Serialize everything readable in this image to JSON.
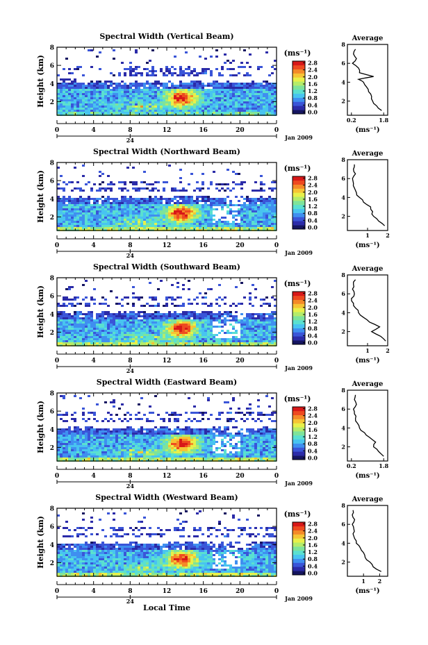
{
  "figure": {
    "xlabel": "Local Time",
    "date_label": "Jan 2009",
    "day_marker": "24",
    "ylabel": "Height (km)",
    "unit_label": "(ms⁻¹)",
    "avg_title": "Average"
  },
  "colormap": [
    "#151560",
    "#2b2ba8",
    "#3a55d8",
    "#3f8ff0",
    "#48c4f0",
    "#5ae0d0",
    "#7ee39a",
    "#b4ec6a",
    "#e8f04a",
    "#f6c434",
    "#f48a28",
    "#ee4a20",
    "#d81818"
  ],
  "chart_data": [
    {
      "type": "heatmap",
      "title": "Spectral Width (Vertical Beam)",
      "x_range": [
        0,
        24
      ],
      "y_range": [
        0.5,
        8
      ],
      "x_ticks": [
        "0",
        "4",
        "8",
        "12",
        "16",
        "20",
        "0"
      ],
      "y_ticks": [
        "2",
        "4",
        "6",
        "8"
      ],
      "colorbar": {
        "ticks": [
          "0.0",
          "0.4",
          "0.8",
          "1.2",
          "1.6",
          "2.0",
          "2.4",
          "2.8"
        ],
        "range": [
          0,
          3.0
        ]
      },
      "profile": {
        "xlim": [
          0,
          2
        ],
        "x_ticks": [
          "0.2",
          "1.8"
        ],
        "tick_values": [
          0.2,
          1.8
        ],
        "y_ticks": [
          "2",
          "4",
          "6",
          "8"
        ],
        "height": [
          1.0,
          1.5,
          2.0,
          2.5,
          3.0,
          3.5,
          4.0,
          4.3,
          4.6,
          5.0,
          5.5,
          6.0,
          6.5,
          7.0,
          7.5
        ],
        "width": [
          1.7,
          1.45,
          1.25,
          1.2,
          1.05,
          0.95,
          0.8,
          0.55,
          1.3,
          0.6,
          0.55,
          0.25,
          0.45,
          0.3,
          0.4
        ]
      }
    },
    {
      "type": "heatmap",
      "title": "Spectral Width (Northward Beam)",
      "x_range": [
        0,
        24
      ],
      "y_range": [
        0.5,
        8
      ],
      "x_ticks": [
        "0",
        "4",
        "8",
        "12",
        "16",
        "20",
        "0"
      ],
      "y_ticks": [
        "2",
        "4",
        "6",
        "8"
      ],
      "colorbar": {
        "ticks": [
          "0.0",
          "0.4",
          "0.8",
          "1.2",
          "1.6",
          "2.0",
          "2.4",
          "2.8"
        ],
        "range": [
          0,
          3.0
        ]
      },
      "profile": {
        "xlim": [
          0,
          2
        ],
        "x_ticks": [
          "1",
          "2"
        ],
        "tick_values": [
          1,
          2
        ],
        "y_ticks": [
          "2",
          "4",
          "6",
          "8"
        ],
        "height": [
          1.0,
          1.5,
          2.0,
          2.5,
          3.0,
          3.5,
          4.0,
          4.5,
          5.0,
          5.5,
          6.0,
          6.5,
          7.0,
          7.5
        ],
        "width": [
          1.85,
          1.55,
          1.3,
          1.25,
          1.15,
          0.8,
          0.6,
          0.45,
          0.35,
          0.3,
          0.25,
          0.4,
          0.3,
          0.35
        ]
      }
    },
    {
      "type": "heatmap",
      "title": "Spectral Width (Southward Beam)",
      "x_range": [
        0,
        24
      ],
      "y_range": [
        0.5,
        8
      ],
      "x_ticks": [
        "0",
        "4",
        "8",
        "12",
        "16",
        "20",
        "0"
      ],
      "y_ticks": [
        "2",
        "4",
        "6",
        "8"
      ],
      "colorbar": {
        "ticks": [
          "0.0",
          "0.4",
          "0.8",
          "1.2",
          "1.6",
          "2.0",
          "2.4",
          "2.8"
        ],
        "range": [
          0,
          3.0
        ]
      },
      "profile": {
        "xlim": [
          0,
          2
        ],
        "x_ticks": [
          "1",
          "2"
        ],
        "tick_values": [
          1,
          2
        ],
        "y_ticks": [
          "2",
          "4",
          "6",
          "8"
        ],
        "height": [
          1.0,
          1.5,
          2.0,
          2.5,
          3.0,
          3.5,
          4.0,
          4.5,
          5.0,
          5.5,
          6.0,
          6.5,
          7.0,
          7.5
        ],
        "width": [
          1.9,
          1.65,
          1.2,
          1.6,
          1.1,
          0.8,
          0.55,
          0.4,
          0.3,
          0.2,
          0.35,
          0.25,
          0.3,
          0.4
        ]
      }
    },
    {
      "type": "heatmap",
      "title": "Spectral Width (Eastward Beam)",
      "x_range": [
        0,
        24
      ],
      "y_range": [
        0.5,
        8
      ],
      "x_ticks": [
        "0",
        "4",
        "8",
        "12",
        "16",
        "20",
        "0"
      ],
      "y_ticks": [
        "2",
        "4",
        "6",
        "8"
      ],
      "colorbar": {
        "ticks": [
          "0.0",
          "0.4",
          "0.8",
          "1.2",
          "1.6",
          "2.0",
          "2.4",
          "2.8"
        ],
        "range": [
          0,
          3.0
        ]
      },
      "profile": {
        "xlim": [
          0,
          2
        ],
        "x_ticks": [
          "0.2",
          "1.8"
        ],
        "tick_values": [
          0.2,
          1.8
        ],
        "y_ticks": [
          "2",
          "4",
          "6",
          "8"
        ],
        "height": [
          1.0,
          1.5,
          2.0,
          2.5,
          3.0,
          3.5,
          4.0,
          4.5,
          5.0,
          5.5,
          6.0,
          6.5,
          7.0,
          7.5
        ],
        "width": [
          1.8,
          1.55,
          1.3,
          1.4,
          1.1,
          0.85,
          0.6,
          0.5,
          0.4,
          0.35,
          0.3,
          0.45,
          0.35,
          0.4
        ]
      }
    },
    {
      "type": "heatmap",
      "title": "Spectral Width (Westward Beam)",
      "x_range": [
        0,
        24
      ],
      "y_range": [
        0.5,
        8
      ],
      "x_ticks": [
        "0",
        "4",
        "8",
        "12",
        "16",
        "20",
        "0"
      ],
      "y_ticks": [
        "2",
        "4",
        "6",
        "8"
      ],
      "colorbar": {
        "ticks": [
          "0.0",
          "0.4",
          "0.8",
          "1.2",
          "1.6",
          "2.0",
          "2.4",
          "2.8"
        ],
        "range": [
          0,
          3.0
        ]
      },
      "profile": {
        "xlim": [
          0,
          2.5
        ],
        "x_ticks": [
          "1",
          "2"
        ],
        "tick_values": [
          1,
          2
        ],
        "y_ticks": [
          "2",
          "4",
          "6",
          "8"
        ],
        "height": [
          1.0,
          1.5,
          2.0,
          2.5,
          3.0,
          3.5,
          4.0,
          4.5,
          5.0,
          5.5,
          6.0,
          6.5,
          7.0,
          7.5
        ],
        "width": [
          2.1,
          1.6,
          1.4,
          1.1,
          1.0,
          0.8,
          0.55,
          0.45,
          0.35,
          0.4,
          0.3,
          0.45,
          0.3,
          0.35
        ]
      }
    }
  ]
}
